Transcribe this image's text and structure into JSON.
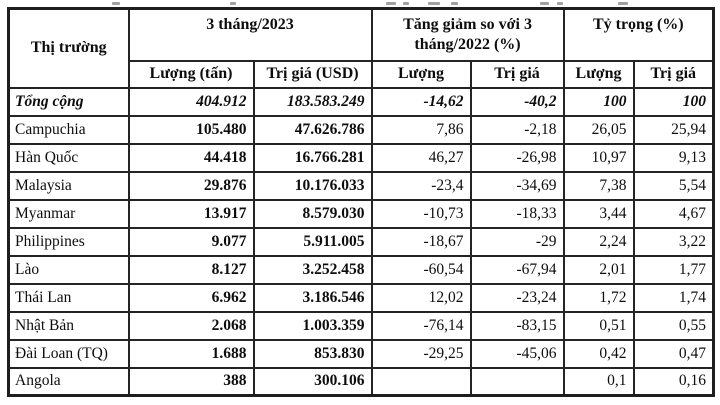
{
  "table": {
    "header": {
      "market": "Thị trường",
      "group_2023": "3 tháng/2023",
      "group_change": "Tăng giảm so với 3 tháng/2022 (%)",
      "group_share": "Tỷ trọng (%)",
      "sub": [
        "Lượng (tấn)",
        "Trị giá (USD)",
        "Lượng",
        "Trị giá",
        "Lượng",
        "Trị giá"
      ]
    },
    "total_row": [
      "Tổng cộng",
      "404.912",
      "183.583.249",
      "-14,62",
      "-40,2",
      "100",
      "100"
    ],
    "rows": [
      [
        "Campuchia",
        "105.480",
        "47.626.786",
        "7,86",
        "-2,18",
        "26,05",
        "25,94"
      ],
      [
        "Hàn Quốc",
        "44.418",
        "16.766.281",
        "46,27",
        "-26,98",
        "10,97",
        "9,13"
      ],
      [
        "Malaysia",
        "29.876",
        "10.176.033",
        "-23,4",
        "-34,69",
        "7,38",
        "5,54"
      ],
      [
        "Myanmar",
        "13.917",
        "8.579.030",
        "-10,73",
        "-18,33",
        "3,44",
        "4,67"
      ],
      [
        "Philippines",
        "9.077",
        "5.911.005",
        "-18,67",
        "-29",
        "2,24",
        "3,22"
      ],
      [
        "Lào",
        "8.127",
        "3.252.458",
        "-60,54",
        "-67,94",
        "2,01",
        "1,77"
      ],
      [
        "Thái Lan",
        "6.962",
        "3.186.546",
        "12,02",
        "-23,24",
        "1,72",
        "1,74"
      ],
      [
        "Nhật Bản",
        "2.068",
        "1.003.359",
        "-76,14",
        "-83,15",
        "0,51",
        "0,55"
      ],
      [
        "Đài Loan (TQ)",
        "1.688",
        "853.830",
        "-29,25",
        "-45,06",
        "0,42",
        "0,47"
      ],
      [
        "Angola",
        "388",
        "300.106",
        "",
        "",
        "0,1",
        "0,16"
      ]
    ]
  },
  "colors": {
    "border": "#1e1e1e",
    "text": "#0d0d0d",
    "background": "#ffffff"
  }
}
